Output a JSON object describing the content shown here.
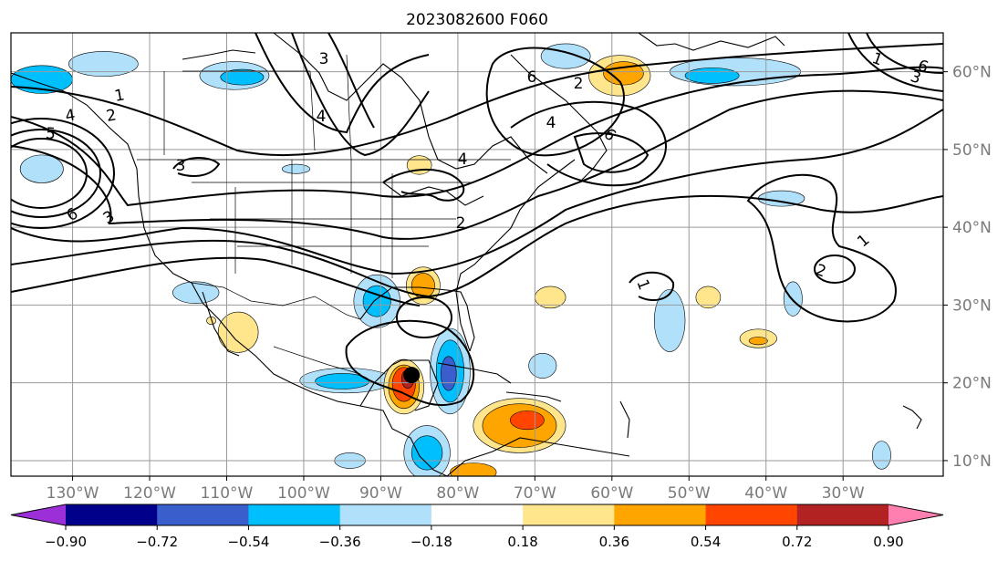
{
  "title": "2023082600 F060",
  "map": {
    "lon_range": [
      -138,
      -17
    ],
    "lat_range": [
      8,
      65
    ],
    "lon_ticks": [
      {
        "value": -130,
        "label": "130°W"
      },
      {
        "value": -120,
        "label": "120°W"
      },
      {
        "value": -110,
        "label": "110°W"
      },
      {
        "value": -100,
        "label": "100°W"
      },
      {
        "value": -90,
        "label": "90°W"
      },
      {
        "value": -80,
        "label": "80°W"
      },
      {
        "value": -70,
        "label": "70°W"
      },
      {
        "value": -60,
        "label": "60°W"
      },
      {
        "value": -50,
        "label": "50°W"
      },
      {
        "value": -40,
        "label": "40°W"
      },
      {
        "value": -30,
        "label": "30°W"
      }
    ],
    "lat_ticks": [
      {
        "value": 60,
        "label": "60°N"
      },
      {
        "value": 50,
        "label": "50°N"
      },
      {
        "value": 40,
        "label": "40°N"
      },
      {
        "value": 30,
        "label": "30°N"
      },
      {
        "value": 20,
        "label": "20°N"
      },
      {
        "value": 10,
        "label": "10°N"
      }
    ],
    "grid": true,
    "storm_marker": {
      "lon": -86.0,
      "lat": 21.0
    }
  },
  "colorbar": {
    "position": "bottom",
    "extend": "both",
    "levels": [
      -0.9,
      -0.72,
      -0.54,
      -0.36,
      -0.18,
      0.18,
      0.36,
      0.54,
      0.72,
      0.9
    ],
    "tick_labels": [
      "−0.90",
      "−0.72",
      "−0.54",
      "−0.36",
      "−0.18",
      "0.18",
      "0.36",
      "0.54",
      "0.72",
      "0.90"
    ],
    "colors": [
      "#9b30d9",
      "#00008b",
      "#3a5fcd",
      "#00bfff",
      "#b0e0fa",
      "#ffffff",
      "#ffe68c",
      "#ffa500",
      "#ff4500",
      "#b22222",
      "#ff80b0"
    ]
  },
  "contour_labels": [
    "1",
    "2",
    "5",
    "4",
    "6",
    "3",
    "3",
    "4",
    "2",
    "4",
    "3",
    "6",
    "4",
    "2",
    "1",
    "6",
    "2",
    "1",
    "6",
    "1",
    "3"
  ],
  "shaded_anomalies": [
    {
      "lon": -126,
      "lat": 61,
      "rx": 4.5,
      "ry": 1.6,
      "level": -0.18
    },
    {
      "lon": -134,
      "lat": 59,
      "rx": 4,
      "ry": 1.8,
      "level": -0.36
    },
    {
      "lon": -109,
      "lat": 59.5,
      "rx": 4.5,
      "ry": 1.8,
      "level": -0.18
    },
    {
      "lon": -108,
      "lat": 59.3,
      "rx": 2.8,
      "ry": 1.0,
      "level": -0.36
    },
    {
      "lon": -134,
      "lat": 47.5,
      "rx": 2.8,
      "ry": 1.8,
      "level": -0.18
    },
    {
      "lon": -101,
      "lat": 47.5,
      "rx": 1.8,
      "ry": 0.6,
      "level": -0.18
    },
    {
      "lon": -85,
      "lat": 48,
      "rx": 1.6,
      "ry": 1.2,
      "level": 0.18
    },
    {
      "lon": -66,
      "lat": 62,
      "rx": 3.2,
      "ry": 1.6,
      "level": -0.18
    },
    {
      "lon": -59,
      "lat": 59.5,
      "rx": 4.0,
      "ry": 2.6,
      "level": 0.18
    },
    {
      "lon": -58.5,
      "lat": 59.8,
      "rx": 2.6,
      "ry": 1.5,
      "level": 0.36
    },
    {
      "lon": -44,
      "lat": 60,
      "rx": 8.5,
      "ry": 1.8,
      "level": -0.18
    },
    {
      "lon": -47,
      "lat": 59.5,
      "rx": 3.5,
      "ry": 1.0,
      "level": -0.36
    },
    {
      "lon": -38,
      "lat": 43.7,
      "rx": 3.0,
      "ry": 1.0,
      "level": -0.18
    },
    {
      "lon": -114,
      "lat": 31.6,
      "rx": 3.0,
      "ry": 1.4,
      "level": -0.18
    },
    {
      "lon": -108.5,
      "lat": 26.5,
      "rx": 2.6,
      "ry": 2.6,
      "level": 0.18
    },
    {
      "lon": -90.5,
      "lat": 30.5,
      "rx": 3.0,
      "ry": 3.4,
      "level": -0.18
    },
    {
      "lon": -90.5,
      "lat": 30.5,
      "rx": 1.8,
      "ry": 2.0,
      "level": -0.36
    },
    {
      "lon": -84.5,
      "lat": 32.5,
      "rx": 2.2,
      "ry": 2.4,
      "level": 0.18
    },
    {
      "lon": -84.5,
      "lat": 32.5,
      "rx": 1.5,
      "ry": 1.6,
      "level": 0.36
    },
    {
      "lon": -94.5,
      "lat": 20.3,
      "rx": 6.0,
      "ry": 1.6,
      "level": -0.18
    },
    {
      "lon": -95,
      "lat": 20.2,
      "rx": 3.5,
      "ry": 1.0,
      "level": -0.36
    },
    {
      "lon": -87,
      "lat": 19.5,
      "rx": 2.6,
      "ry": 3.5,
      "level": 0.18
    },
    {
      "lon": -87,
      "lat": 19.5,
      "rx": 2.0,
      "ry": 2.8,
      "level": 0.36
    },
    {
      "lon": -87,
      "lat": 19.8,
      "rx": 1.5,
      "ry": 2.2,
      "level": 0.54
    },
    {
      "lon": -86.5,
      "lat": 20.5,
      "rx": 0.8,
      "ry": 1.2,
      "level": 0.72
    },
    {
      "lon": -81,
      "lat": 21.5,
      "rx": 2.6,
      "ry": 5.5,
      "level": -0.18
    },
    {
      "lon": -81,
      "lat": 21.5,
      "rx": 1.8,
      "ry": 4.0,
      "level": -0.36
    },
    {
      "lon": -81.2,
      "lat": 21.2,
      "rx": 1.0,
      "ry": 2.2,
      "level": -0.54
    },
    {
      "lon": -72,
      "lat": 14.5,
      "rx": 6.0,
      "ry": 3.5,
      "level": 0.18
    },
    {
      "lon": -72,
      "lat": 14.5,
      "rx": 4.8,
      "ry": 2.8,
      "level": 0.36
    },
    {
      "lon": -71,
      "lat": 15.2,
      "rx": 2.2,
      "ry": 1.2,
      "level": 0.54
    },
    {
      "lon": -84,
      "lat": 11,
      "rx": 3.0,
      "ry": 3.5,
      "level": -0.18
    },
    {
      "lon": -84,
      "lat": 11,
      "rx": 2.0,
      "ry": 2.2,
      "level": -0.36
    },
    {
      "lon": -78,
      "lat": 8.5,
      "rx": 3.0,
      "ry": 1.2,
      "level": 0.36
    },
    {
      "lon": -68,
      "lat": 31.0,
      "rx": 2.0,
      "ry": 1.4,
      "level": 0.18
    },
    {
      "lon": -69,
      "lat": 22.2,
      "rx": 1.8,
      "ry": 1.6,
      "level": -0.18
    },
    {
      "lon": -52.5,
      "lat": 28.0,
      "rx": 2.0,
      "ry": 4.0,
      "level": -0.18
    },
    {
      "lon": -47.5,
      "lat": 31.0,
      "rx": 1.6,
      "ry": 1.4,
      "level": 0.18
    },
    {
      "lon": -41,
      "lat": 25.7,
      "rx": 2.4,
      "ry": 1.2,
      "level": 0.18
    },
    {
      "lon": -41,
      "lat": 25.4,
      "rx": 1.2,
      "ry": 0.5,
      "level": 0.36
    },
    {
      "lon": -36.5,
      "lat": 30.8,
      "rx": 1.2,
      "ry": 2.2,
      "level": -0.18
    },
    {
      "lon": -25,
      "lat": 10.7,
      "rx": 1.2,
      "ry": 1.8,
      "level": -0.18
    },
    {
      "lon": -94,
      "lat": 10.0,
      "rx": 2.0,
      "ry": 1.0,
      "level": -0.18
    },
    {
      "lon": -112,
      "lat": 28.0,
      "rx": 0.6,
      "ry": 0.5,
      "level": 0.18
    }
  ]
}
